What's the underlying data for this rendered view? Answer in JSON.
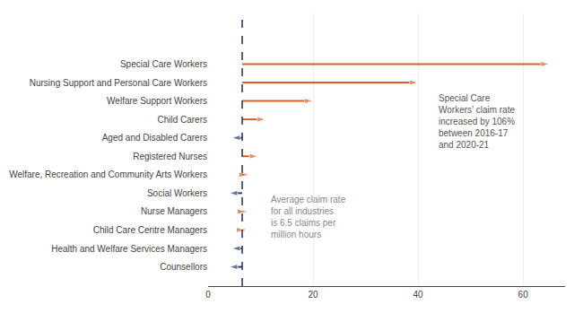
{
  "chart_data": {
    "type": "arrow",
    "orientation": "horizontal",
    "categories": [
      "Special Care Workers",
      "Nursing Support and Personal Care Workers",
      "Welfare Support Workers",
      "Child Carers",
      "Aged and Disabled Carers",
      "Registered Nurses",
      "Welfare, Recreation and Community Arts Workers",
      "Social Workers",
      "Nurse Managers",
      "Child Care Centre Managers",
      "Health and Welfare Services Managers",
      "Counsellors"
    ],
    "start": [
      6.5,
      6.5,
      6.5,
      6.5,
      6.5,
      6.5,
      6.5,
      6.5,
      6.5,
      6.5,
      6.5,
      6.5
    ],
    "values": [
      65,
      40,
      20,
      11,
      4.5,
      9.5,
      7.5,
      4.0,
      7.2,
      7.0,
      4.5,
      4.0
    ],
    "colors": [
      "#d95f25",
      "#d95f25",
      "#d95f25",
      "#d95f25",
      "#2e3f6e",
      "#d95f25",
      "#d95f25",
      "#2e3f6e",
      "#d95f25",
      "#d95f25",
      "#2e3f6e",
      "#2e3f6e"
    ],
    "average": 6.5,
    "xlim": [
      0,
      68
    ],
    "xticks": [
      0,
      20,
      40,
      60
    ],
    "grid": true,
    "annotations": [
      "Average claim rate\nfor all industries\nis 6.5 claims per\nmillion hours",
      "Special Care\nWorkers’ claim rate\nincreased by 106%\nbetween 2016-17\nand 2020-21"
    ]
  }
}
